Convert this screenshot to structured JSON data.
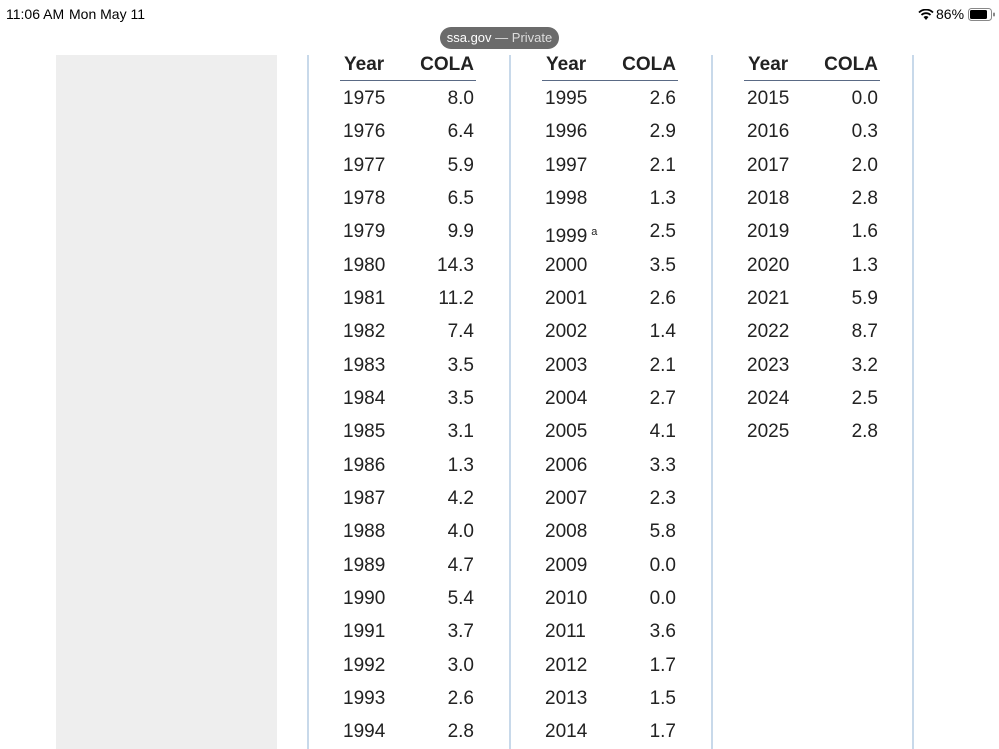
{
  "status_bar": {
    "time": "11:06 AM",
    "date": "Mon May 11",
    "battery": "86%"
  },
  "address_bar": {
    "url": "ssa.gov",
    "separator": "—",
    "mode": "Private"
  },
  "tables": [
    {
      "headers": [
        "Year",
        "COLA"
      ],
      "rows": [
        {
          "year": "1975",
          "cola": "8.0"
        },
        {
          "year": "1976",
          "cola": "6.4"
        },
        {
          "year": "1977",
          "cola": "5.9"
        },
        {
          "year": "1978",
          "cola": "6.5"
        },
        {
          "year": "1979",
          "cola": "9.9"
        },
        {
          "year": "1980",
          "cola": "14.3"
        },
        {
          "year": "1981",
          "cola": "11.2"
        },
        {
          "year": "1982",
          "cola": "7.4"
        },
        {
          "year": "1983",
          "cola": "3.5"
        },
        {
          "year": "1984",
          "cola": "3.5"
        },
        {
          "year": "1985",
          "cola": "3.1"
        },
        {
          "year": "1986",
          "cola": "1.3"
        },
        {
          "year": "1987",
          "cola": "4.2"
        },
        {
          "year": "1988",
          "cola": "4.0"
        },
        {
          "year": "1989",
          "cola": "4.7"
        },
        {
          "year": "1990",
          "cola": "5.4"
        },
        {
          "year": "1991",
          "cola": "3.7"
        },
        {
          "year": "1992",
          "cola": "3.0"
        },
        {
          "year": "1993",
          "cola": "2.6"
        },
        {
          "year": "1994",
          "cola": "2.8"
        }
      ]
    },
    {
      "headers": [
        "Year",
        "COLA"
      ],
      "rows": [
        {
          "year": "1995",
          "cola": "2.6"
        },
        {
          "year": "1996",
          "cola": "2.9"
        },
        {
          "year": "1997",
          "cola": "2.1"
        },
        {
          "year": "1998",
          "cola": "1.3"
        },
        {
          "year": "1999",
          "note": "a",
          "cola": "2.5"
        },
        {
          "year": "2000",
          "cola": "3.5"
        },
        {
          "year": "2001",
          "cola": "2.6"
        },
        {
          "year": "2002",
          "cola": "1.4"
        },
        {
          "year": "2003",
          "cola": "2.1"
        },
        {
          "year": "2004",
          "cola": "2.7"
        },
        {
          "year": "2005",
          "cola": "4.1"
        },
        {
          "year": "2006",
          "cola": "3.3"
        },
        {
          "year": "2007",
          "cola": "2.3"
        },
        {
          "year": "2008",
          "cola": "5.8"
        },
        {
          "year": "2009",
          "cola": "0.0"
        },
        {
          "year": "2010",
          "cola": "0.0"
        },
        {
          "year": "2011",
          "cola": "3.6"
        },
        {
          "year": "2012",
          "cola": "1.7"
        },
        {
          "year": "2013",
          "cola": "1.5"
        },
        {
          "year": "2014",
          "cola": "1.7"
        }
      ]
    },
    {
      "headers": [
        "Year",
        "COLA"
      ],
      "rows": [
        {
          "year": "2015",
          "cola": "0.0"
        },
        {
          "year": "2016",
          "cola": "0.3"
        },
        {
          "year": "2017",
          "cola": "2.0"
        },
        {
          "year": "2018",
          "cola": "2.8"
        },
        {
          "year": "2019",
          "cola": "1.6"
        },
        {
          "year": "2020",
          "cola": "1.3"
        },
        {
          "year": "2021",
          "cola": "5.9"
        },
        {
          "year": "2022",
          "cola": "8.7"
        },
        {
          "year": "2023",
          "cola": "3.2"
        },
        {
          "year": "2024",
          "cola": "2.5"
        },
        {
          "year": "2025",
          "cola": "2.8"
        }
      ]
    }
  ]
}
